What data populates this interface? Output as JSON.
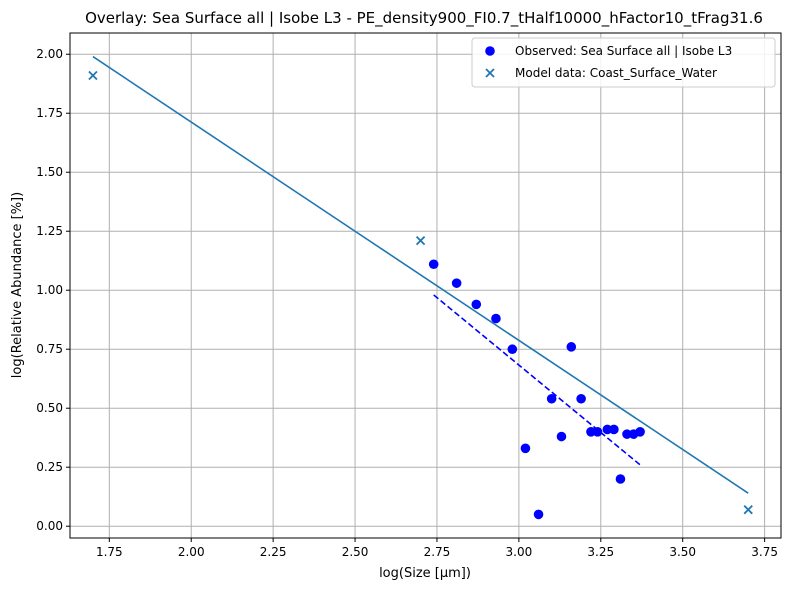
{
  "chart_data": {
    "type": "scatter",
    "title": "Overlay: Sea Surface all | Isobe L3 - PE_density900_FI0.7_tHalf10000_hFactor10_tFrag31.6",
    "xlabel": "log(Size [µm])",
    "ylabel": "log(Relative Abundance [%])",
    "xlim": [
      1.63,
      3.8
    ],
    "ylim": [
      -0.05,
      2.09
    ],
    "xticks": [
      "1.75",
      "2.00",
      "2.25",
      "2.50",
      "2.75",
      "3.00",
      "3.25",
      "3.50",
      "3.75"
    ],
    "xtick_values": [
      1.75,
      2.0,
      2.25,
      2.5,
      2.75,
      3.0,
      3.25,
      3.5,
      3.75
    ],
    "yticks": [
      "0.00",
      "0.25",
      "0.50",
      "0.75",
      "1.00",
      "1.25",
      "1.50",
      "1.75",
      "2.00"
    ],
    "ytick_values": [
      0.0,
      0.25,
      0.5,
      0.75,
      1.0,
      1.25,
      1.5,
      1.75,
      2.0
    ],
    "grid": true,
    "legend_position": "top-right",
    "series": [
      {
        "name": "Observed: Sea Surface all | Isobe L3",
        "marker": "circle",
        "color": "#0000ff",
        "points": [
          [
            2.74,
            1.11
          ],
          [
            2.81,
            1.03
          ],
          [
            2.87,
            0.94
          ],
          [
            2.93,
            0.88
          ],
          [
            2.98,
            0.75
          ],
          [
            3.02,
            0.33
          ],
          [
            3.06,
            0.05
          ],
          [
            3.1,
            0.54
          ],
          [
            3.13,
            0.38
          ],
          [
            3.16,
            0.76
          ],
          [
            3.19,
            0.54
          ],
          [
            3.22,
            0.4
          ],
          [
            3.24,
            0.4
          ],
          [
            3.27,
            0.41
          ],
          [
            3.29,
            0.41
          ],
          [
            3.31,
            0.2
          ],
          [
            3.33,
            0.39
          ],
          [
            3.35,
            0.39
          ],
          [
            3.37,
            0.4
          ]
        ]
      },
      {
        "name": "Model data: Coast_Surface_Water",
        "marker": "x",
        "color": "#1f77b4",
        "points": [
          [
            1.7,
            1.91
          ],
          [
            2.7,
            1.21
          ],
          [
            3.7,
            0.07
          ]
        ]
      }
    ],
    "lines": [
      {
        "style": "solid",
        "color": "#1f77b4",
        "points": [
          [
            1.7,
            1.99
          ],
          [
            3.7,
            0.14
          ]
        ]
      },
      {
        "style": "dashed",
        "color": "#0000ff",
        "points": [
          [
            2.74,
            0.98
          ],
          [
            3.37,
            0.26
          ]
        ]
      }
    ]
  }
}
